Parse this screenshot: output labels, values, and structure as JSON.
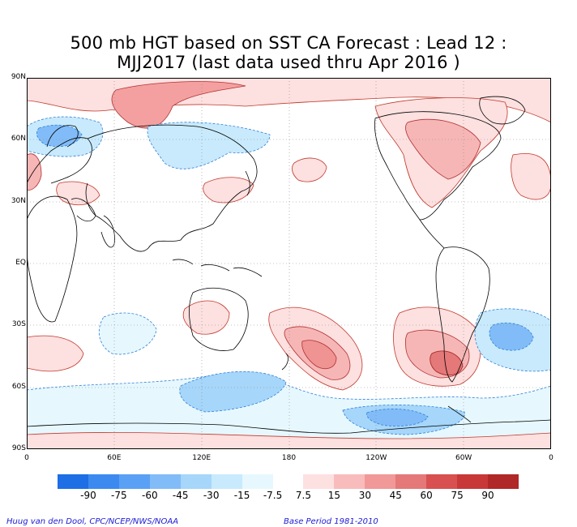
{
  "title_line1": "500 mb HGT based on SST CA Forecast : Lead 12 :",
  "title_line2": "MJJ2017 (last data used thru Apr 2016 )",
  "y_axis": {
    "ticks": [
      {
        "label": "90N",
        "lat": 90
      },
      {
        "label": "60N",
        "lat": 60
      },
      {
        "label": "30N",
        "lat": 30
      },
      {
        "label": "EQ",
        "lat": 0
      },
      {
        "label": "30S",
        "lat": -30
      },
      {
        "label": "60S",
        "lat": -60
      },
      {
        "label": "90S",
        "lat": -90
      }
    ]
  },
  "x_axis": {
    "ticks": [
      {
        "label": "0",
        "lon": 0
      },
      {
        "label": "60E",
        "lon": 60
      },
      {
        "label": "120E",
        "lon": 120
      },
      {
        "label": "180",
        "lon": 180
      },
      {
        "label": "120W",
        "lon": 240
      },
      {
        "label": "60W",
        "lon": 300
      },
      {
        "label": "0",
        "lon": 360
      }
    ]
  },
  "colorbar": {
    "labels": [
      "-90",
      "-75",
      "-60",
      "-45",
      "-30",
      "-15",
      "-7.5",
      "7.5",
      "15",
      "30",
      "45",
      "60",
      "75",
      "90"
    ],
    "colors": [
      "#1e6ee6",
      "#3c8af0",
      "#5aa0f5",
      "#82bcf8",
      "#a6d6fa",
      "#c8eafc",
      "#e6f8fe",
      "#ffffff",
      "#fde0e0",
      "#f9bcbc",
      "#f19898",
      "#e57878",
      "#d85050",
      "#c83838",
      "#b02828"
    ]
  },
  "footer_left": "Huug van den Dool, CPC/NCEP/NWS/NOAA",
  "footer_right": "Base Period 1981-2010",
  "map": {
    "projection": "cylindrical-equidistant",
    "lon_range": [
      0,
      360
    ],
    "lat_range": [
      -90,
      90
    ],
    "anomalies_positive": [
      {
        "region": "arctic-north-asia",
        "lon": 60,
        "lat": 73,
        "level": 45
      },
      {
        "region": "north-canada-greenland",
        "lon": 290,
        "lat": 55,
        "level": 30
      },
      {
        "region": "japan",
        "lon": 140,
        "lat": 35,
        "level": 30
      },
      {
        "region": "south-pacific-east-nz",
        "lon": 190,
        "lat": -43,
        "level": 45
      },
      {
        "region": "south-atlantic-argentina",
        "lon": 305,
        "lat": -48,
        "level": 60
      },
      {
        "region": "australia",
        "lon": 128,
        "lat": -28,
        "level": 30
      }
    ],
    "anomalies_negative": [
      {
        "region": "scandinavia",
        "lon": 15,
        "lat": 60,
        "level": -30
      },
      {
        "region": "south-indian-antarctic",
        "lon": 115,
        "lat": -62,
        "level": -30
      },
      {
        "region": "ross-sea-antarctic",
        "lon": 270,
        "lat": -70,
        "level": -30
      },
      {
        "region": "south-atlantic-east",
        "lon": 330,
        "lat": -35,
        "level": -30
      }
    ]
  }
}
